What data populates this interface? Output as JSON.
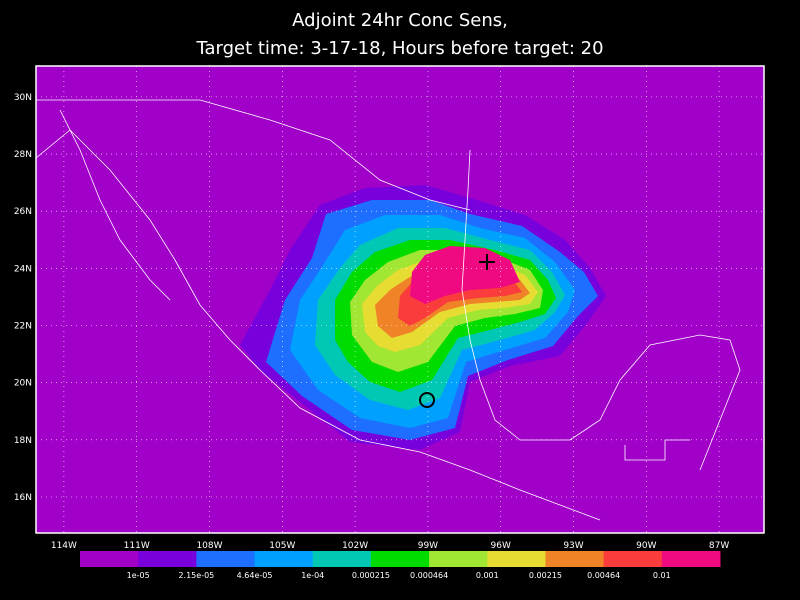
{
  "title": [
    "Adjoint 24hr Conc Sens,",
    "Target time: 3-17-18, Hours before target: 20"
  ],
  "map": {
    "xlim": [
      -115.15,
      -85.15
    ],
    "ylim": [
      14.74,
      31.08
    ],
    "xticks": [
      {
        "value": -114,
        "label": "114W"
      },
      {
        "value": -111,
        "label": "111W"
      },
      {
        "value": -108,
        "label": "108W"
      },
      {
        "value": -105,
        "label": "105W"
      },
      {
        "value": -102,
        "label": "102W"
      },
      {
        "value": -99,
        "label": "99W"
      },
      {
        "value": -96,
        "label": "96W"
      },
      {
        "value": -93,
        "label": "93W"
      },
      {
        "value": -90,
        "label": "90W"
      },
      {
        "value": -87,
        "label": "87W"
      }
    ],
    "yticks": [
      {
        "value": 16,
        "label": "16N"
      },
      {
        "value": 18,
        "label": "18N"
      },
      {
        "value": 20,
        "label": "20N"
      },
      {
        "value": 22,
        "label": "22N"
      },
      {
        "value": 24,
        "label": "24N"
      },
      {
        "value": 26,
        "label": "26N"
      },
      {
        "value": 28,
        "label": "28N"
      },
      {
        "value": 30,
        "label": "30N"
      }
    ],
    "grid": true
  },
  "colorbar": {
    "colors": [
      "#a000c8",
      "#7800dc",
      "#1e6eff",
      "#00a0ff",
      "#00c8b4",
      "#00dc00",
      "#a0e632",
      "#e6dc32",
      "#f08228",
      "#fa3c3c",
      "#f00a82"
    ],
    "labels": [
      "1e-05",
      "2.15e-05",
      "4.64e-05",
      "1e-04",
      "0.000215",
      "0.000464",
      "0.001",
      "0.00215",
      "0.00464",
      "0.01"
    ]
  }
}
